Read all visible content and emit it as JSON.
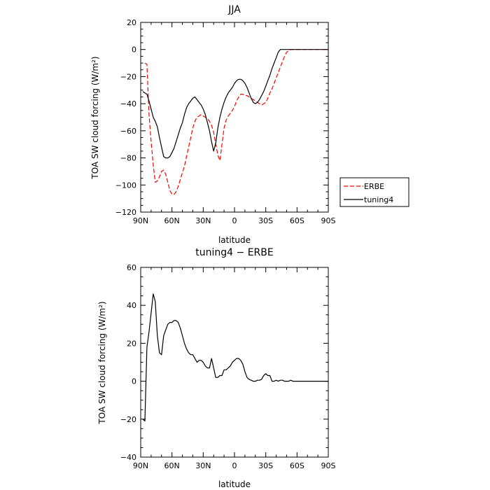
{
  "chart_data": [
    {
      "type": "line",
      "title": "JJA",
      "xlabel": "latitude",
      "ylabel": "TOA SW cloud forcing (W/m²)",
      "xlim": [
        90,
        -90
      ],
      "ylim": [
        -120,
        20
      ],
      "xticks": [
        90,
        60,
        30,
        0,
        -30,
        -60,
        -90
      ],
      "xtick_labels": [
        "90N",
        "60N",
        "30N",
        "0",
        "30S",
        "60S",
        "90S"
      ],
      "yticks": [
        20,
        0,
        -20,
        -40,
        -60,
        -80,
        -100,
        -120
      ],
      "ytick_labels": [
        "20",
        "0",
        "−20",
        "−40",
        "−60",
        "−80",
        "−100",
        "−120"
      ],
      "legend_position": "right",
      "series": [
        {
          "name": "ERBE",
          "color": "#ff0000",
          "style": "dashed",
          "x": [
            86,
            84,
            82,
            80,
            78,
            76,
            74,
            72,
            70,
            68,
            66,
            64,
            62,
            60,
            58,
            56,
            54,
            52,
            50,
            48,
            46,
            44,
            42,
            40,
            38,
            36,
            34,
            32,
            30,
            28,
            26,
            24,
            22,
            20,
            18,
            16,
            14,
            12,
            10,
            8,
            6,
            4,
            2,
            0,
            -2,
            -4,
            -6,
            -8,
            -10,
            -12,
            -14,
            -16,
            -18,
            -20,
            -22,
            -24,
            -26,
            -28,
            -30,
            -32,
            -34,
            -36,
            -38,
            -40,
            -42,
            -44,
            -46,
            -48,
            -50,
            -52,
            -54,
            -56,
            -58,
            -60,
            -62,
            -64,
            -66,
            -68,
            -70,
            -72,
            -74,
            -76,
            -78,
            -80,
            -82,
            -84,
            -86,
            -88,
            -90
          ],
          "y": [
            -10,
            -11,
            -48,
            -68,
            -85,
            -98,
            -97,
            -94,
            -90,
            -89,
            -92,
            -98,
            -104,
            -107,
            -107,
            -105,
            -101,
            -96,
            -91,
            -86,
            -79,
            -72,
            -65,
            -58,
            -53,
            -50,
            -49,
            -48,
            -49,
            -50,
            -51,
            -53,
            -56,
            -61,
            -70,
            -78,
            -82,
            -70,
            -58,
            -52,
            -49,
            -47,
            -45,
            -42,
            -38,
            -35,
            -33,
            -33,
            -34,
            -34,
            -35,
            -36,
            -37,
            -38,
            -39,
            -40,
            -41,
            -40,
            -39,
            -36,
            -32,
            -29,
            -25,
            -21,
            -17,
            -13,
            -9,
            -5,
            -2,
            -1,
            0,
            0,
            0,
            0,
            0,
            0,
            0,
            0,
            0,
            0,
            0,
            0,
            0,
            0,
            0,
            0,
            0,
            0,
            0
          ]
        },
        {
          "name": "tuning4",
          "color": "#000000",
          "style": "solid",
          "x": [
            88,
            86,
            84,
            82,
            80,
            78,
            76,
            74,
            72,
            70,
            68,
            66,
            64,
            62,
            60,
            58,
            56,
            54,
            52,
            50,
            48,
            46,
            44,
            42,
            40,
            38,
            36,
            34,
            32,
            30,
            28,
            26,
            24,
            22,
            20,
            18,
            16,
            14,
            12,
            10,
            8,
            6,
            4,
            2,
            0,
            -2,
            -4,
            -6,
            -8,
            -10,
            -12,
            -14,
            -16,
            -18,
            -20,
            -22,
            -24,
            -26,
            -28,
            -30,
            -32,
            -34,
            -36,
            -38,
            -40,
            -42,
            -44,
            -46,
            -48,
            -50,
            -52,
            -54,
            -56,
            -58,
            -60,
            -62,
            -64,
            -66,
            -68,
            -70,
            -72,
            -74,
            -76,
            -78,
            -80,
            -82,
            -84,
            -86,
            -88,
            -90
          ],
          "y": [
            -31,
            -32,
            -33,
            -38,
            -44,
            -50,
            -53,
            -57,
            -65,
            -72,
            -79,
            -80,
            -80,
            -79,
            -76,
            -73,
            -68,
            -63,
            -58,
            -54,
            -48,
            -43,
            -40,
            -38,
            -36,
            -35,
            -37,
            -39,
            -41,
            -44,
            -48,
            -54,
            -60,
            -68,
            -75,
            -69,
            -58,
            -50,
            -44,
            -39,
            -35,
            -32,
            -30,
            -28,
            -25,
            -23,
            -22,
            -22,
            -23,
            -25,
            -28,
            -32,
            -36,
            -39,
            -40,
            -39,
            -37,
            -34,
            -31,
            -27,
            -23,
            -19,
            -14,
            -10,
            -6,
            -2,
            0,
            0,
            0,
            0,
            0,
            0,
            0,
            0,
            0,
            0,
            0,
            0,
            0,
            0,
            0,
            0,
            0,
            0,
            0,
            0,
            0,
            0,
            0,
            0
          ]
        }
      ]
    },
    {
      "type": "line",
      "title": "tuning4 − ERBE",
      "xlabel": "latitude",
      "ylabel": "TOA SW cloud forcing (W/m²)",
      "xlim": [
        90,
        -90
      ],
      "ylim": [
        -40,
        60
      ],
      "xticks": [
        90,
        60,
        30,
        0,
        -30,
        -60,
        -90
      ],
      "xtick_labels": [
        "90N",
        "60N",
        "30N",
        "0",
        "30S",
        "60S",
        "90S"
      ],
      "yticks": [
        60,
        40,
        20,
        0,
        -20,
        -40
      ],
      "ytick_labels": [
        "60",
        "40",
        "20",
        "0",
        "−20",
        "−40"
      ],
      "series": [
        {
          "name": "",
          "color": "#000000",
          "style": "solid",
          "x": [
            88,
            86,
            84,
            82,
            80,
            78,
            76,
            74,
            72,
            70,
            68,
            66,
            64,
            62,
            60,
            58,
            56,
            54,
            52,
            50,
            48,
            46,
            44,
            42,
            40,
            38,
            36,
            34,
            32,
            30,
            28,
            26,
            24,
            22,
            20,
            18,
            16,
            14,
            12,
            10,
            8,
            6,
            4,
            2,
            0,
            -2,
            -4,
            -6,
            -8,
            -10,
            -12,
            -14,
            -16,
            -18,
            -20,
            -22,
            -24,
            -26,
            -28,
            -30,
            -32,
            -34,
            -36,
            -38,
            -40,
            -42,
            -44,
            -46,
            -48,
            -50,
            -52,
            -54,
            -56,
            -58,
            -60,
            -62,
            -64,
            -66,
            -68,
            -70,
            -72,
            -74,
            -76,
            -78,
            -80,
            -82,
            -84,
            -86,
            -88,
            -90
          ],
          "y": [
            -20,
            -21,
            18,
            26,
            36,
            46,
            42,
            24,
            15,
            14,
            24,
            27,
            30,
            31,
            31,
            32,
            32,
            31,
            28,
            24,
            20,
            17,
            15,
            14,
            14,
            12,
            10,
            11,
            11,
            10,
            8,
            7,
            7,
            12,
            7,
            2,
            2,
            3,
            3,
            6,
            6,
            7,
            8,
            10,
            11,
            12,
            12,
            11,
            9,
            5,
            2,
            1,
            0.5,
            0,
            0,
            0.5,
            0.5,
            1,
            3,
            4,
            3,
            3,
            0,
            0,
            0.5,
            0,
            0.5,
            0.5,
            0,
            0,
            0,
            0.5,
            0,
            0,
            0,
            0,
            0,
            0,
            0,
            0,
            0,
            0,
            0,
            0,
            0,
            0,
            0,
            0,
            0,
            0
          ]
        }
      ]
    }
  ]
}
